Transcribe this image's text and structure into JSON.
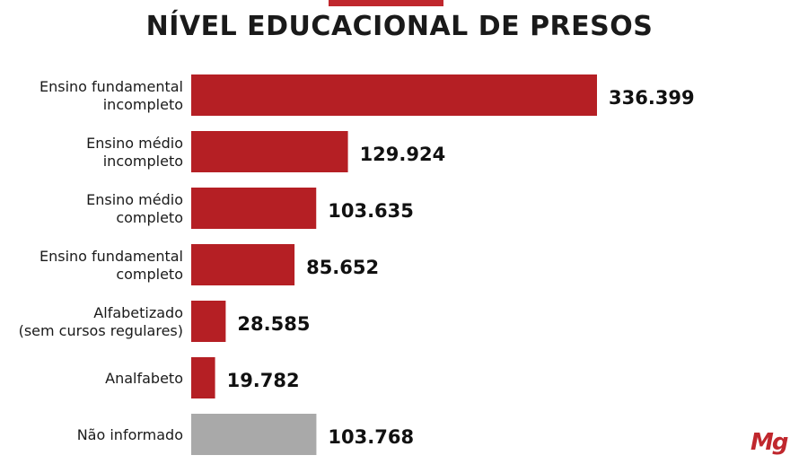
{
  "header": {
    "title": "NÍVEL EDUCACIONAL DE PRESOS"
  },
  "colors": {
    "accent": "#c0272d",
    "bar": "#b51f24",
    "bar_missing": "#a9a9a9"
  },
  "chart_data": {
    "type": "bar",
    "orientation": "horizontal",
    "title": "NÍVEL EDUCACIONAL DE PRESOS",
    "categories": [
      [
        "Ensino fundamental",
        "incompleto"
      ],
      [
        "Ensino médio",
        "incompleto"
      ],
      [
        "Ensino médio",
        "completo"
      ],
      [
        "Ensino fundamental",
        "completo"
      ],
      [
        "Alfabetizado",
        "(sem cursos regulares)"
      ],
      [
        "Analfabeto"
      ],
      [
        "Não informado"
      ]
    ],
    "values": [
      336399,
      129924,
      103635,
      85652,
      28585,
      19782,
      103768
    ],
    "value_labels": [
      "336.399",
      "129.924",
      "103.635",
      "85.652",
      "28.585",
      "19.782",
      "103.768"
    ],
    "bar_colors": [
      "#b51f24",
      "#b51f24",
      "#b51f24",
      "#b51f24",
      "#b51f24",
      "#b51f24",
      "#a9a9a9"
    ],
    "grid": false,
    "legend": "none"
  },
  "brand": {
    "logo_text": "Mg"
  }
}
